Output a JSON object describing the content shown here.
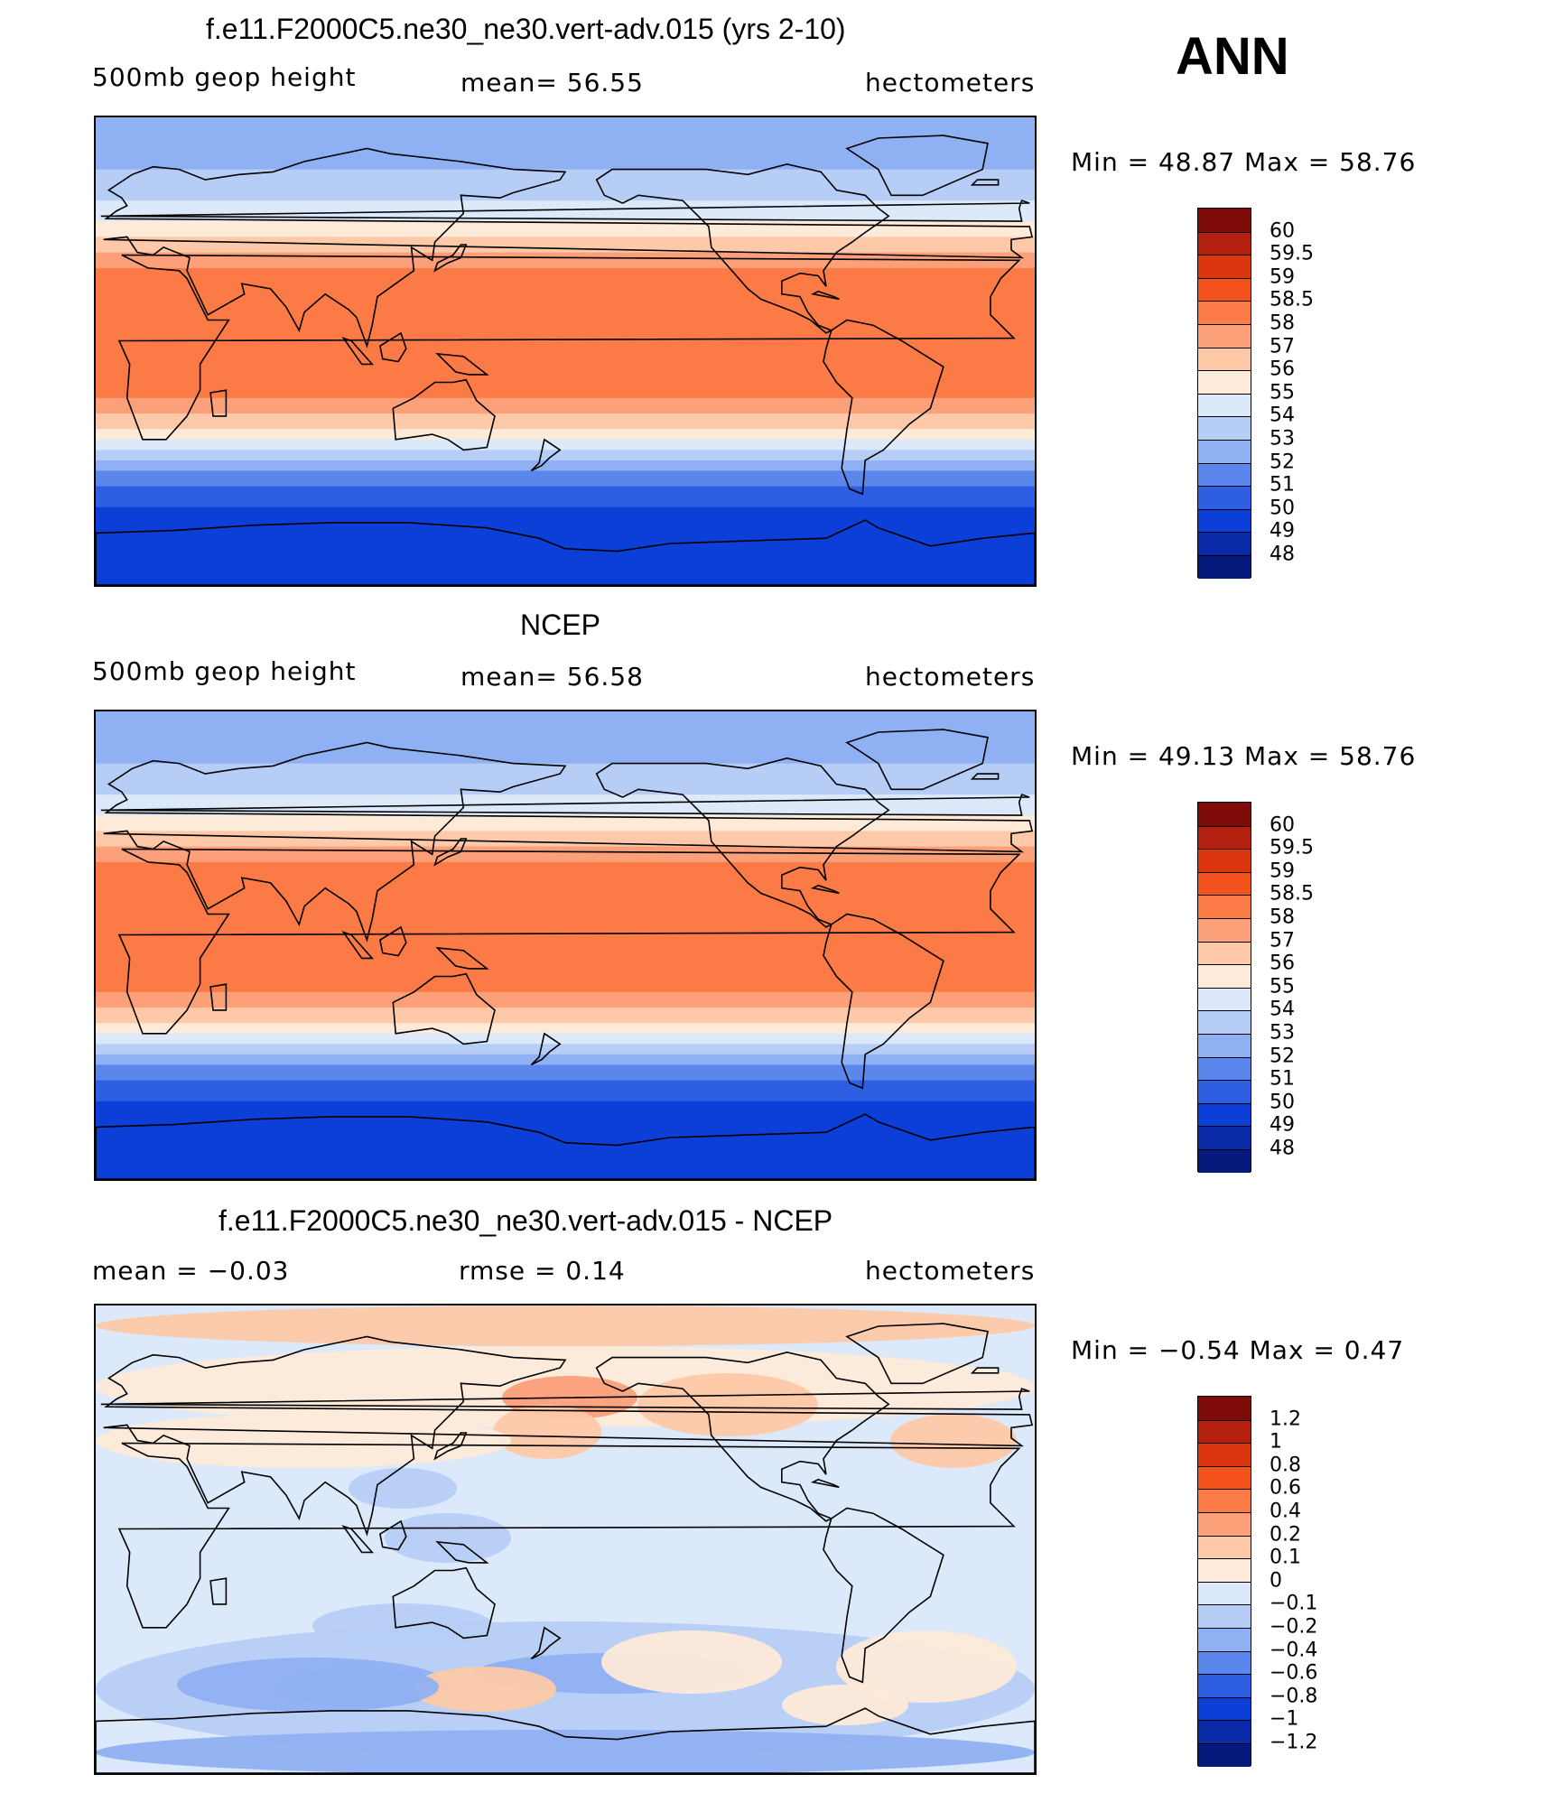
{
  "season": "ANN",
  "panels": [
    {
      "title": "f.e11.F2000C5.ne30_ne30.vert-adv.015 (yrs 2-10)",
      "left_label": "500mb  geop  height",
      "mid_label": "mean=   56.55",
      "units": "hectometers",
      "minmax": "Min  =    48.87  Max  =    58.76",
      "map_kind": "abs",
      "colorbar": {
        "labels": [
          "60",
          "59.5",
          "59",
          "58.5",
          "58",
          "57",
          "56",
          "55",
          "54",
          "53",
          "52",
          "51",
          "50",
          "49",
          "48"
        ],
        "colors": [
          "#7f0a0a",
          "#b3200f",
          "#dc360f",
          "#f4521d",
          "#fb7a45",
          "#fca07a",
          "#fdc9a8",
          "#fdead9",
          "#dce9fa",
          "#b6cdf6",
          "#8fb0f2",
          "#5b86eb",
          "#2e5fe3",
          "#0c3fd7",
          "#0a2aa8",
          "#061a7c"
        ]
      }
    },
    {
      "title": "NCEP",
      "left_label": "500mb  geop  height",
      "mid_label": "mean=   56.58",
      "units": "hectometers",
      "minmax": "Min  =    49.13  Max  =    58.76",
      "map_kind": "abs",
      "colorbar": {
        "labels": [
          "60",
          "59.5",
          "59",
          "58.5",
          "58",
          "57",
          "56",
          "55",
          "54",
          "53",
          "52",
          "51",
          "50",
          "49",
          "48"
        ],
        "colors": [
          "#7f0a0a",
          "#b3200f",
          "#dc360f",
          "#f4521d",
          "#fb7a45",
          "#fca07a",
          "#fdc9a8",
          "#fdead9",
          "#dce9fa",
          "#b6cdf6",
          "#8fb0f2",
          "#5b86eb",
          "#2e5fe3",
          "#0c3fd7",
          "#0a2aa8",
          "#061a7c"
        ]
      }
    },
    {
      "title": "f.e11.F2000C5.ne30_ne30.vert-adv.015 - NCEP",
      "left_label": "mean  =    −0.03",
      "mid_label": "rmse  =     0.14",
      "units": "hectometers",
      "minmax": "Min  =   −0.54  Max  =     0.47",
      "map_kind": "diff",
      "colorbar": {
        "labels": [
          "1.2",
          "1",
          "0.8",
          "0.6",
          "0.4",
          "0.2",
          "0.1",
          "0",
          "−0.1",
          "−0.2",
          "−0.4",
          "−0.6",
          "−0.8",
          "−1",
          "−1.2"
        ],
        "colors": [
          "#7f0a0a",
          "#b3200f",
          "#dc360f",
          "#f4521d",
          "#fb7a45",
          "#fca07a",
          "#fdc9a8",
          "#fdead9",
          "#dce9fa",
          "#b6cdf6",
          "#8fb0f2",
          "#5b86eb",
          "#2e5fe3",
          "#0c3fd7",
          "#0a2aa8",
          "#061a7c"
        ]
      }
    }
  ]
}
